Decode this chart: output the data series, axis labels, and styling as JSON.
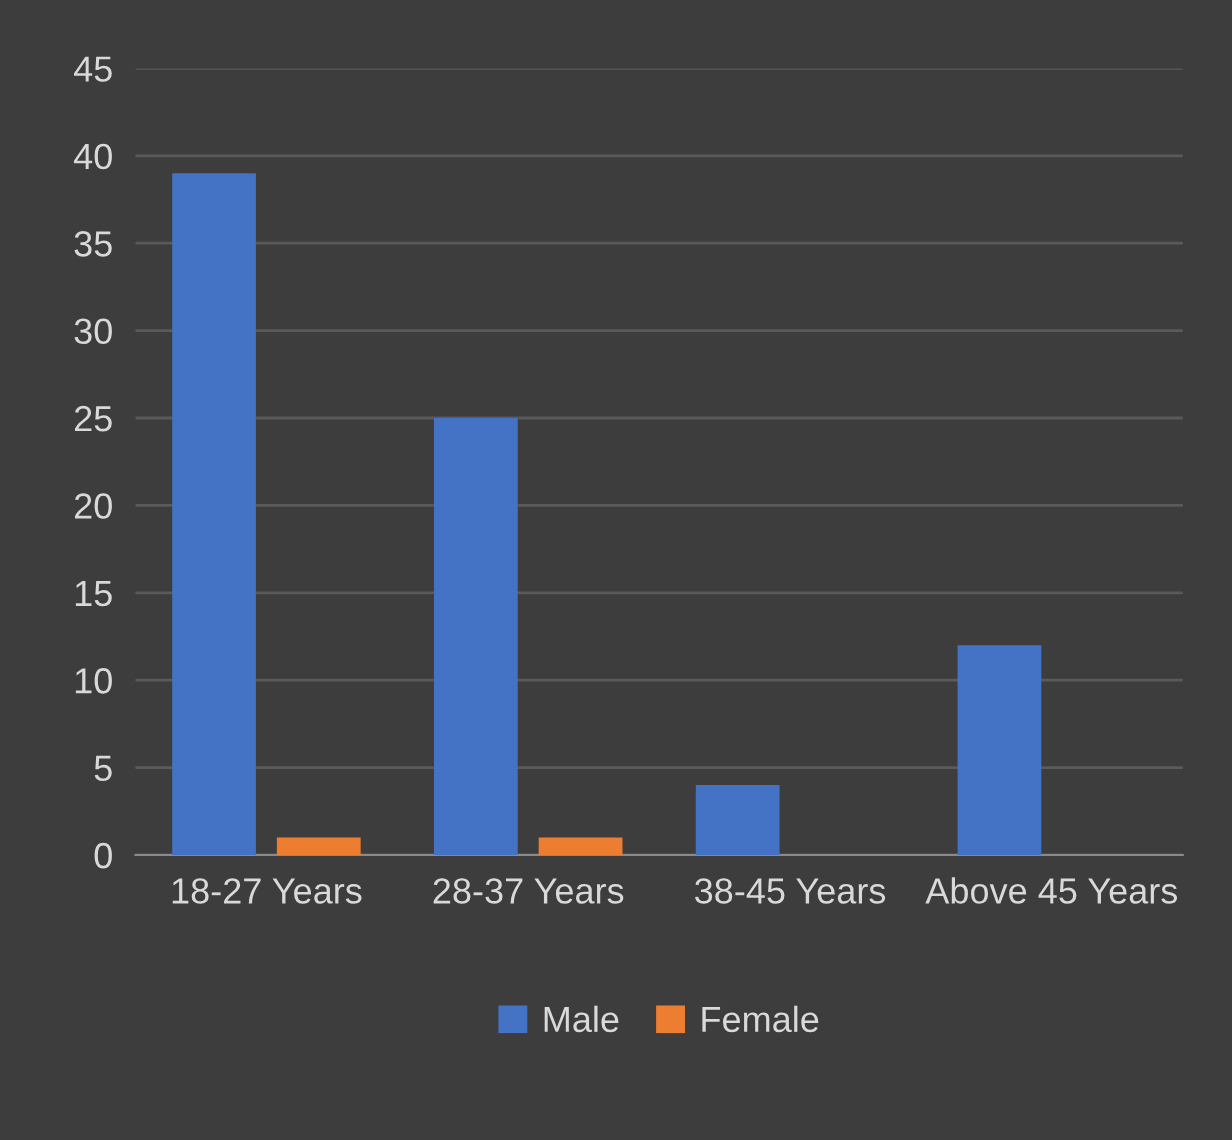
{
  "chart_data": {
    "type": "bar",
    "categories": [
      "18-27 Years",
      "28-37 Years",
      "38-45 Years",
      "Above 45 Years"
    ],
    "series": [
      {
        "name": "Male",
        "color": "#4472c4",
        "values": [
          39,
          25,
          4,
          12
        ]
      },
      {
        "name": "Female",
        "color": "#ed7d31",
        "values": [
          1,
          1,
          0,
          0
        ]
      }
    ],
    "ylim": [
      0,
      45
    ],
    "yticks": [
      0,
      5,
      10,
      15,
      20,
      25,
      30,
      35,
      40,
      45
    ],
    "grid": "y",
    "legend": "bottom"
  }
}
